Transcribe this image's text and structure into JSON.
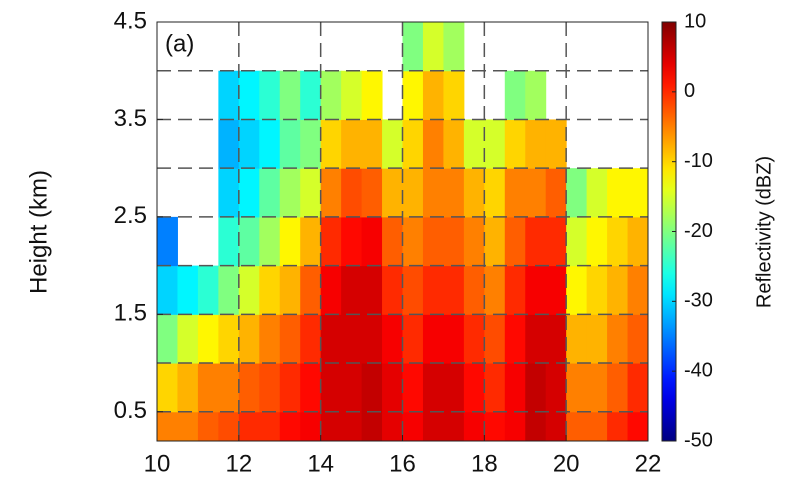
{
  "chart_data": {
    "type": "heatmap",
    "annotation": "(a)",
    "ylabel": "Height (km)",
    "colorbar_label": "Reflectivity (dBZ)",
    "colormap": "jet",
    "xbins": [
      10,
      10.5,
      11,
      11.5,
      12,
      12.5,
      13,
      13.5,
      14,
      14.5,
      15,
      15.5,
      16,
      16.5,
      17,
      17.5,
      18,
      18.5,
      19,
      19.5,
      20,
      20.5,
      21,
      21.5,
      22
    ],
    "ybins": [
      0.2,
      0.5,
      1,
      1.5,
      2,
      2.5,
      3,
      3.5,
      4,
      4.5
    ],
    "z": [
      [
        -5,
        -5,
        -3,
        -2,
        0,
        0,
        2,
        3,
        5,
        5,
        6,
        4,
        3,
        5,
        5,
        3,
        2,
        3,
        6,
        5,
        -3,
        -3,
        0,
        2
      ],
      [
        -10,
        -8,
        -5,
        -5,
        -3,
        -2,
        0,
        2,
        5,
        5,
        6,
        4,
        2,
        5,
        5,
        2,
        0,
        3,
        6,
        5,
        -5,
        -5,
        -3,
        0
      ],
      [
        -20,
        -15,
        -12,
        -10,
        -8,
        -5,
        -3,
        0,
        5,
        5,
        5,
        3,
        0,
        3,
        3,
        0,
        -2,
        2,
        5,
        5,
        -8,
        -8,
        -5,
        -3
      ],
      [
        -30,
        -28,
        -25,
        -20,
        -15,
        -10,
        -8,
        -3,
        3,
        5,
        5,
        0,
        -2,
        0,
        0,
        -3,
        -5,
        0,
        3,
        3,
        -12,
        -10,
        -8,
        -5
      ],
      [
        -35,
        null,
        null,
        -25,
        -22,
        -18,
        -12,
        -8,
        0,
        2,
        3,
        -3,
        -5,
        -3,
        -3,
        -5,
        -8,
        -3,
        0,
        0,
        -15,
        -12,
        -10,
        -8
      ],
      [
        null,
        null,
        null,
        -30,
        -28,
        -22,
        -18,
        -15,
        -5,
        -2,
        -3,
        -8,
        -8,
        -5,
        -5,
        -8,
        -10,
        -5,
        -5,
        -3,
        -20,
        -15,
        -12,
        -12
      ],
      [
        null,
        null,
        null,
        -32,
        -30,
        -28,
        -22,
        -20,
        -10,
        -8,
        -8,
        -15,
        -10,
        -5,
        -8,
        -15,
        -15,
        -10,
        -8,
        -8,
        null,
        null,
        null,
        null
      ],
      [
        null,
        null,
        null,
        -30,
        -28,
        -25,
        -20,
        -25,
        -18,
        -15,
        -12,
        null,
        -12,
        -8,
        -10,
        null,
        null,
        -20,
        -18,
        null,
        null,
        null,
        null,
        null
      ],
      [
        null,
        null,
        null,
        null,
        null,
        null,
        null,
        null,
        null,
        null,
        null,
        null,
        -20,
        -15,
        -18,
        null,
        null,
        null,
        null,
        null,
        null,
        null,
        null,
        null
      ]
    ],
    "xlim": [
      10,
      22
    ],
    "xticks": [
      10,
      12,
      14,
      16,
      18,
      20,
      22
    ],
    "ylim": [
      0.2,
      4.5
    ],
    "yticks": [
      0.5,
      1.5,
      2.5,
      3.5,
      4.5
    ],
    "ygrid": [
      0.5,
      1,
      1.5,
      2,
      2.5,
      3,
      3.5,
      4
    ],
    "grid": true,
    "clim": [
      -50,
      10
    ],
    "cticks": [
      -50,
      -40,
      -30,
      -20,
      -10,
      0,
      10
    ]
  }
}
